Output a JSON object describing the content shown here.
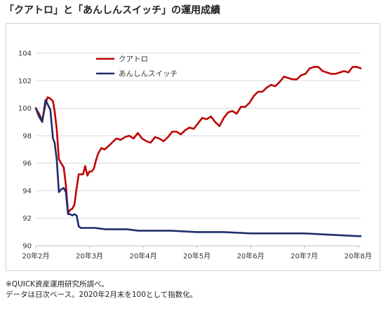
{
  "header": {
    "title": "「クアトロ」と「あんしんスイッチ」の運用成績"
  },
  "notes": [
    "※QUICK資産運用研究所調べ。",
    "データは日次ベース。2020年2月末を100として指数化。"
  ],
  "chart_data": {
    "type": "line",
    "title": "「クアトロ」と「あんしんスイッチ」の運用成績",
    "xlabel": "",
    "ylabel": "",
    "ylim": [
      90,
      104
    ],
    "yticks": [
      90,
      92,
      94,
      96,
      98,
      100,
      102,
      104
    ],
    "xlim": [
      0,
      6.05
    ],
    "xticks": [
      {
        "pos": 0,
        "label": "20年2月"
      },
      {
        "pos": 1,
        "label": "20年3月"
      },
      {
        "pos": 2,
        "label": "20年4月"
      },
      {
        "pos": 3,
        "label": "20年5月"
      },
      {
        "pos": 4,
        "label": "20年6月"
      },
      {
        "pos": 5,
        "label": "20年7月"
      },
      {
        "pos": 6,
        "label": "20年8月"
      }
    ],
    "grid": {
      "horizontal": true,
      "vertical": false
    },
    "legend_position": "top-center",
    "series": [
      {
        "name": "クアトロ",
        "color": "#c00000",
        "x": [
          0,
          0.06,
          0.12,
          0.18,
          0.22,
          0.27,
          0.32,
          0.35,
          0.39,
          0.43,
          0.47,
          0.52,
          0.56,
          0.6,
          0.64,
          0.68,
          0.72,
          0.76,
          0.8,
          0.84,
          0.88,
          0.92,
          0.96,
          1.0,
          1.04,
          1.08,
          1.12,
          1.16,
          1.22,
          1.28,
          1.34,
          1.42,
          1.5,
          1.58,
          1.66,
          1.74,
          1.82,
          1.9,
          1.98,
          2.06,
          2.14,
          2.22,
          2.3,
          2.38,
          2.46,
          2.54,
          2.62,
          2.7,
          2.78,
          2.86,
          2.94,
          3.02,
          3.1,
          3.18,
          3.26,
          3.34,
          3.42,
          3.5,
          3.58,
          3.66,
          3.74,
          3.82,
          3.9,
          3.98,
          4.06,
          4.14,
          4.22,
          4.3,
          4.38,
          4.46,
          4.54,
          4.62,
          4.7,
          4.78,
          4.86,
          4.94,
          5.02,
          5.1,
          5.18,
          5.26,
          5.34,
          5.42,
          5.5,
          5.58,
          5.66,
          5.74,
          5.82,
          5.9,
          5.98,
          6.05
        ],
        "values": [
          100.0,
          99.6,
          99.1,
          100.3,
          100.8,
          100.7,
          100.5,
          99.8,
          98.5,
          96.3,
          96.0,
          95.7,
          94.4,
          92.4,
          92.6,
          92.7,
          93.0,
          94.2,
          95.2,
          95.2,
          95.2,
          95.8,
          95.1,
          95.4,
          95.4,
          95.6,
          96.2,
          96.7,
          97.1,
          97.0,
          97.2,
          97.5,
          97.8,
          97.7,
          97.9,
          98.0,
          97.8,
          98.2,
          97.8,
          97.6,
          97.5,
          97.9,
          97.8,
          97.6,
          97.9,
          98.3,
          98.3,
          98.1,
          98.4,
          98.6,
          98.5,
          98.9,
          99.3,
          99.2,
          99.4,
          99.0,
          98.7,
          99.3,
          99.7,
          99.8,
          99.6,
          100.1,
          100.1,
          100.4,
          100.9,
          101.2,
          101.2,
          101.5,
          101.7,
          101.6,
          101.9,
          102.3,
          102.2,
          102.1,
          102.1,
          102.4,
          102.5,
          102.9,
          103.0,
          103.0,
          102.7,
          102.6,
          102.5,
          102.5,
          102.6,
          102.7,
          102.6,
          103.0,
          103.0,
          102.9
        ]
      },
      {
        "name": "あんしんスイッチ",
        "color": "#1f2d6b",
        "x": [
          0,
          0.06,
          0.12,
          0.18,
          0.22,
          0.27,
          0.32,
          0.35,
          0.39,
          0.43,
          0.47,
          0.52,
          0.56,
          0.6,
          0.64,
          0.68,
          0.72,
          0.76,
          0.8,
          0.84,
          0.88,
          0.92,
          0.96,
          1.0,
          1.1,
          1.3,
          1.5,
          1.7,
          1.9,
          2.1,
          2.5,
          3.0,
          3.5,
          4.0,
          4.5,
          5.0,
          5.5,
          6.0,
          6.05
        ],
        "values": [
          100.0,
          99.4,
          99.0,
          100.6,
          100.3,
          99.9,
          97.8,
          97.5,
          96.3,
          93.9,
          94.1,
          94.2,
          93.9,
          92.3,
          92.3,
          92.2,
          92.3,
          92.2,
          91.4,
          91.3,
          91.3,
          91.3,
          91.3,
          91.3,
          91.3,
          91.2,
          91.2,
          91.2,
          91.1,
          91.1,
          91.1,
          91.0,
          91.0,
          90.9,
          90.9,
          90.9,
          90.8,
          90.7,
          90.7
        ]
      }
    ]
  }
}
